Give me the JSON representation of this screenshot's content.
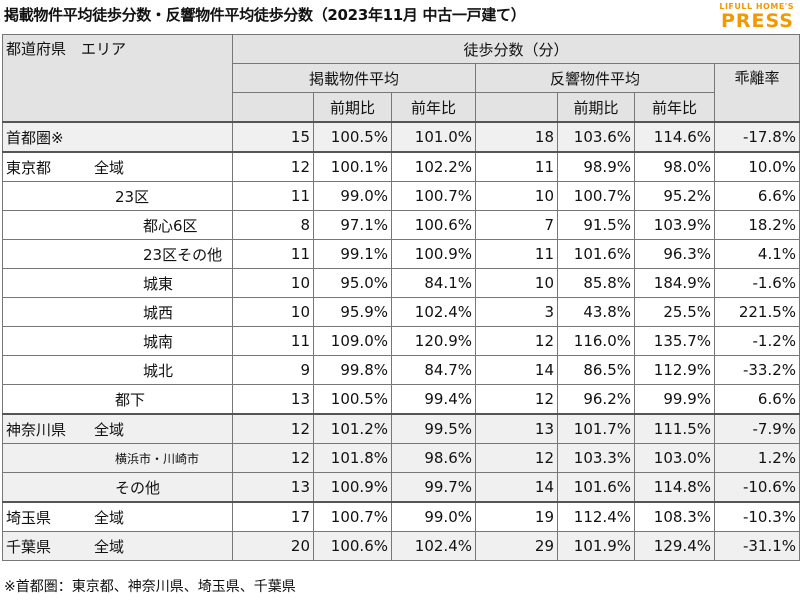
{
  "title": "掲載物件平均徒歩分数・反響物件平均徒歩分数（2023年11月 中古一戸建て）",
  "logo": {
    "line1": "LIFULL HOME'S",
    "line2": "PRESS",
    "brand_color": "#f39800"
  },
  "header": {
    "area_label": "都道府県　エリア",
    "walk_minutes": "徒歩分数（分）",
    "listed_avg": "掲載物件平均",
    "response_avg": "反響物件平均",
    "divergence": "乖離率",
    "prev_period": "前期比",
    "prev_year": "前年比"
  },
  "rows": [
    {
      "pref": "首都圏※",
      "area": "",
      "listed": "15",
      "l_pp": "100.5%",
      "l_py": "101.0%",
      "resp": "18",
      "r_pp": "103.6%",
      "r_py": "114.6%",
      "div": "-17.8%"
    },
    {
      "pref": "東京都",
      "area": "全域",
      "listed": "12",
      "l_pp": "100.1%",
      "l_py": "102.2%",
      "resp": "11",
      "r_pp": "98.9%",
      "r_py": "98.0%",
      "div": "10.0%"
    },
    {
      "pref": "",
      "area": "23区",
      "listed": "11",
      "l_pp": "99.0%",
      "l_py": "100.7%",
      "resp": "10",
      "r_pp": "100.7%",
      "r_py": "95.2%",
      "div": "6.6%"
    },
    {
      "pref": "",
      "area": "都心6区",
      "listed": "8",
      "l_pp": "97.1%",
      "l_py": "100.6%",
      "resp": "7",
      "r_pp": "91.5%",
      "r_py": "103.9%",
      "div": "18.2%"
    },
    {
      "pref": "",
      "area": "23区その他",
      "listed": "11",
      "l_pp": "99.1%",
      "l_py": "100.9%",
      "resp": "11",
      "r_pp": "101.6%",
      "r_py": "96.3%",
      "div": "4.1%"
    },
    {
      "pref": "",
      "area": "城東",
      "listed": "10",
      "l_pp": "95.0%",
      "l_py": "84.1%",
      "resp": "10",
      "r_pp": "85.8%",
      "r_py": "184.9%",
      "div": "-1.6%"
    },
    {
      "pref": "",
      "area": "城西",
      "listed": "10",
      "l_pp": "95.9%",
      "l_py": "102.4%",
      "resp": "3",
      "r_pp": "43.8%",
      "r_py": "25.5%",
      "div": "221.5%"
    },
    {
      "pref": "",
      "area": "城南",
      "listed": "11",
      "l_pp": "109.0%",
      "l_py": "120.9%",
      "resp": "12",
      "r_pp": "116.0%",
      "r_py": "135.7%",
      "div": "-1.2%"
    },
    {
      "pref": "",
      "area": "城北",
      "listed": "9",
      "l_pp": "99.8%",
      "l_py": "84.7%",
      "resp": "14",
      "r_pp": "86.5%",
      "r_py": "112.9%",
      "div": "-33.2%"
    },
    {
      "pref": "",
      "area": "都下",
      "listed": "13",
      "l_pp": "100.5%",
      "l_py": "99.4%",
      "resp": "12",
      "r_pp": "96.2%",
      "r_py": "99.9%",
      "div": "6.6%"
    },
    {
      "pref": "神奈川県",
      "area": "全域",
      "listed": "12",
      "l_pp": "101.2%",
      "l_py": "99.5%",
      "resp": "13",
      "r_pp": "101.7%",
      "r_py": "111.5%",
      "div": "-7.9%"
    },
    {
      "pref": "",
      "area": "横浜市・川崎市",
      "listed": "12",
      "l_pp": "101.8%",
      "l_py": "98.6%",
      "resp": "12",
      "r_pp": "103.3%",
      "r_py": "103.0%",
      "div": "1.2%"
    },
    {
      "pref": "",
      "area": "その他",
      "listed": "13",
      "l_pp": "100.9%",
      "l_py": "99.7%",
      "resp": "14",
      "r_pp": "101.6%",
      "r_py": "114.8%",
      "div": "-10.6%"
    },
    {
      "pref": "埼玉県",
      "area": "全域",
      "listed": "17",
      "l_pp": "100.7%",
      "l_py": "99.0%",
      "resp": "19",
      "r_pp": "112.4%",
      "r_py": "108.3%",
      "div": "-10.3%"
    },
    {
      "pref": "千葉県",
      "area": "全域",
      "listed": "20",
      "l_pp": "100.6%",
      "l_py": "102.4%",
      "resp": "29",
      "r_pp": "101.9%",
      "r_py": "129.4%",
      "div": "-31.1%"
    }
  ],
  "footnote": "※首都圏：東京都、神奈川県、埼玉県、千葉県"
}
